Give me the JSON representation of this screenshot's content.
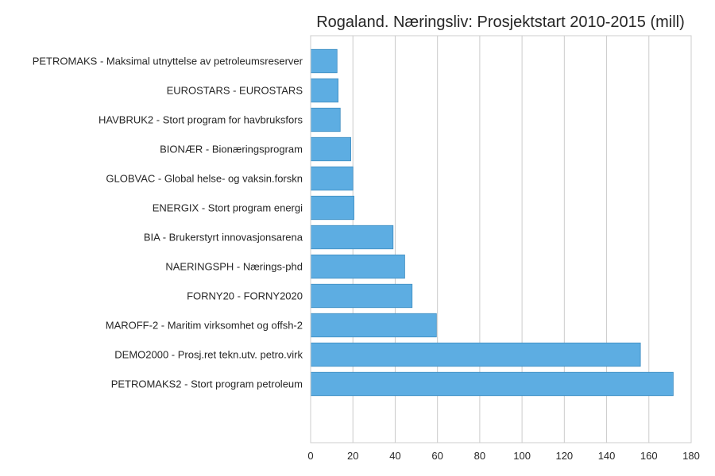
{
  "chart_data": {
    "type": "bar",
    "orientation": "horizontal",
    "title": "Rogaland. Næringsliv: Prosjektstart 2010-2015 (mill)",
    "xlabel": "",
    "ylabel": "",
    "xlim": [
      0,
      180
    ],
    "xticks": [
      0,
      20,
      40,
      60,
      80,
      100,
      120,
      140,
      160,
      180
    ],
    "grid": "vertical",
    "bar_color": "#5DADE2",
    "bar_edge_color": "#3E8CC0",
    "categories": [
      "PETROMAKS - Maksimal utnyttelse av petroleumsreserver",
      "EUROSTARS - EUROSTARS",
      "HAVBRUK2 - Stort program for havbruksfors",
      "BIONÆR - Bionæringsprogram",
      "GLOBVAC - Global helse- og vaksin.forskn",
      "ENERGIX - Stort program energi",
      "BIA - Brukerstyrt innovasjonsarena",
      "NAERINGSPH - Nærings-phd",
      "FORNY20 - FORNY2020",
      "MAROFF-2 - Maritim virksomhet og offsh-2",
      "DEMO2000 - Prosj.ret tekn.utv. petro.virk",
      "PETROMAKS2 - Stort program petroleum"
    ],
    "values": [
      12.5,
      13,
      14,
      19,
      20,
      20.5,
      39,
      44.5,
      48,
      59.5,
      156,
      171.5
    ]
  }
}
